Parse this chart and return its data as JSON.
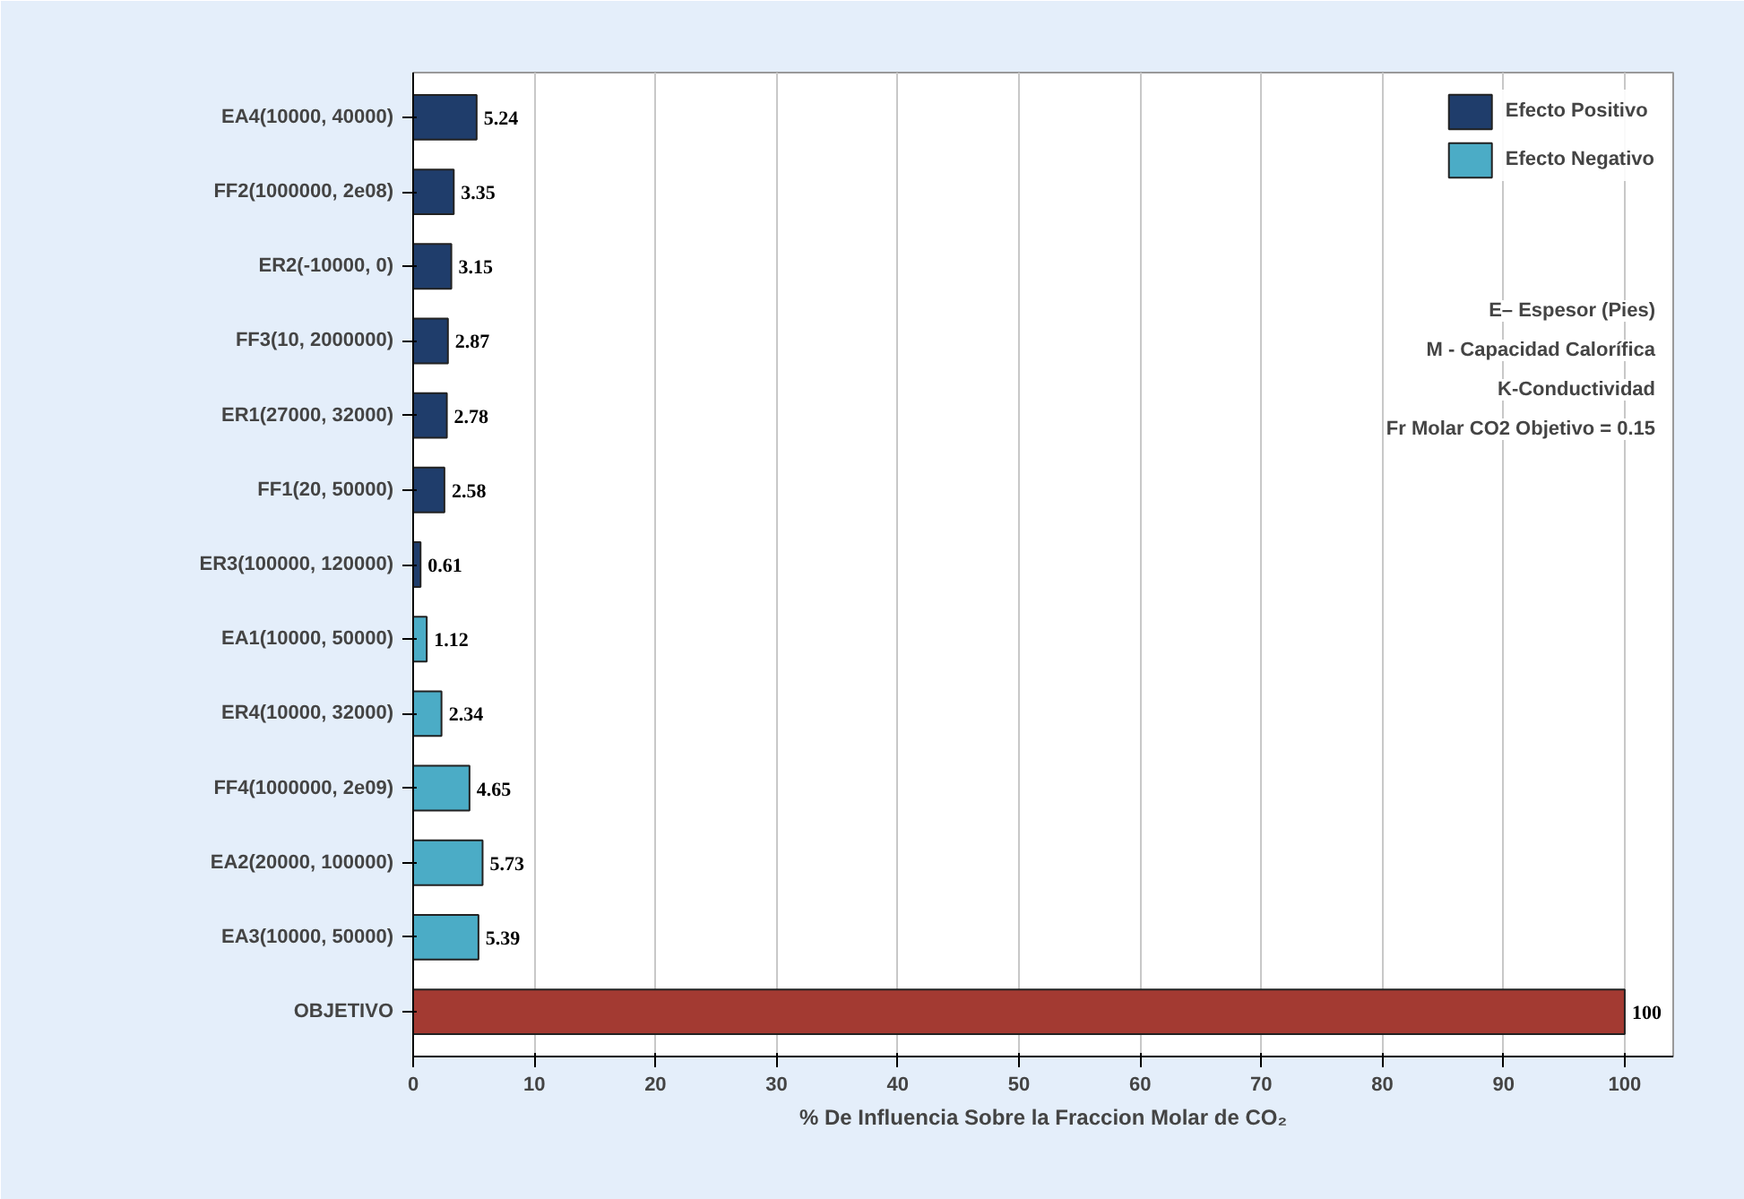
{
  "chart_data": {
    "type": "bar",
    "orientation": "horizontal",
    "xlabel": "% De Influencia Sobre la Fraccion Molar de CO₂",
    "categories": [
      "EA4(10000, 40000)",
      "FF2(1000000, 2e08)",
      "ER2(-10000, 0)",
      "FF3(10, 2000000)",
      "ER1(27000, 32000)",
      "FF1(20, 50000)",
      "ER3(100000, 120000)",
      "EA1(10000, 50000)",
      "ER4(10000, 32000)",
      "FF4(1000000, 2e09)",
      "EA2(20000, 100000)",
      "EA3(10000, 50000)",
      "OBJETIVO"
    ],
    "series": [
      {
        "name": "Efecto Positivo",
        "color": "#1f3d6b",
        "values": [
          5.24,
          3.35,
          3.15,
          2.87,
          2.78,
          2.58,
          0.61,
          null,
          null,
          null,
          null,
          null,
          null
        ]
      },
      {
        "name": "Efecto Negativo",
        "color": "#4bacc6",
        "values": [
          null,
          null,
          null,
          null,
          null,
          null,
          null,
          1.12,
          2.34,
          4.65,
          5.73,
          5.39,
          null
        ]
      },
      {
        "color": "#a33a32",
        "values": [
          null,
          null,
          null,
          null,
          null,
          null,
          null,
          null,
          null,
          null,
          null,
          null,
          100
        ]
      }
    ],
    "data_labels": true,
    "xlim": [
      0,
      104
    ],
    "xticks": [
      0,
      10,
      20,
      30,
      40,
      50,
      60,
      70,
      80,
      90,
      100
    ],
    "grid": "x",
    "legend": "top right",
    "annotations": [
      "E– Espesor (Pies)",
      "M - Capacidad Calorífica",
      "K-Conductividad",
      "Fr Molar CO2 Objetivo = 0.15"
    ]
  }
}
